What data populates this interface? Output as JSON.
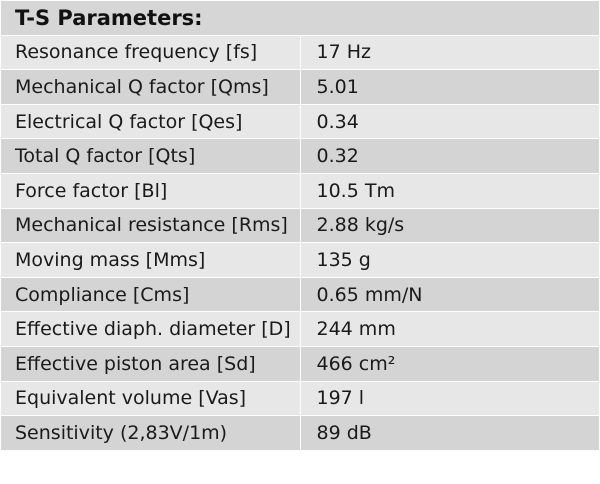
{
  "table": {
    "title": "T-S Parameters:",
    "rows": [
      {
        "label": "Resonance frequency [fs]",
        "value": "17 Hz"
      },
      {
        "label": "Mechanical Q factor [Qms]",
        "value": "5.01"
      },
      {
        "label": "Electrical Q factor [Qes]",
        "value": "0.34"
      },
      {
        "label": "Total Q factor [Qts]",
        "value": "0.32"
      },
      {
        "label": "Force factor [Bl]",
        "value": "10.5 Tm"
      },
      {
        "label": "Mechanical resistance [Rms]",
        "value": "2.88 kg/s"
      },
      {
        "label": "Moving mass [Mms]",
        "value": "135 g"
      },
      {
        "label": "Compliance [Cms]",
        "value": "0.65 mm/N"
      },
      {
        "label": "Effective diaph. diameter [D]",
        "value": "244 mm"
      },
      {
        "label": "Effective piston area [Sd]",
        "value": "466 cm²"
      },
      {
        "label": "Equivalent volume [Vas]",
        "value": "197 l"
      },
      {
        "label": "Sensitivity (2,83V/1m)",
        "value": "89 dB"
      }
    ]
  }
}
